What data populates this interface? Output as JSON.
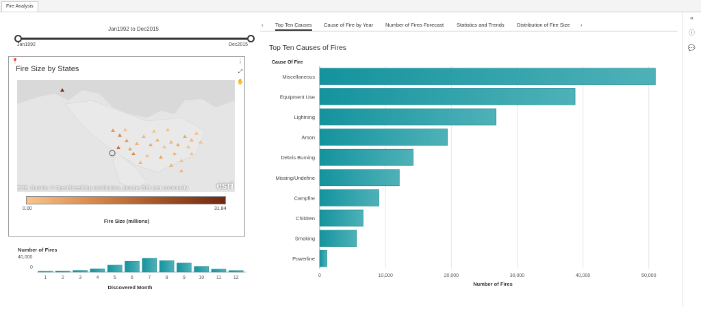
{
  "app_tab": "Fire Analysis",
  "slider": {
    "title": "Jan1992 to Dec2015",
    "min_label": "Jan1992",
    "max_label": "Dec2015"
  },
  "map": {
    "title": "Fire Size by States",
    "attribution": "ERE, Garmin, © OpenStreetMap contributors, and the GIS user community",
    "logo_text": "esri",
    "legend_min": "0.00",
    "legend_max": "31.84",
    "legend_title": "Fire Size (millions)",
    "colors": [
      "#f9c48c",
      "#d8894a",
      "#a45426",
      "#6f2810"
    ]
  },
  "tabs": [
    {
      "label": "Top Ten Causes",
      "active": true
    },
    {
      "label": "Cause of Fire by Year"
    },
    {
      "label": "Number of Fires Forecast"
    },
    {
      "label": "Statistics and Trends"
    },
    {
      "label": "Distribution of Fire Size"
    }
  ],
  "nav": {
    "prev": "‹",
    "next": "›"
  },
  "right_toolbar": {
    "collapse": "«",
    "info": "ⓘ",
    "comment": "💬"
  },
  "chart_data": [
    {
      "type": "bar",
      "orientation": "horizontal",
      "title": "Top Ten Causes of Fires",
      "ylabel": "Cause Of Fire",
      "xlabel": "Number of Fires",
      "categories": [
        "Miscellaneous",
        "Equipment Use",
        "Lightning",
        "Arson",
        "Debris Burning",
        "Missing/Undefine",
        "Campfire",
        "Children",
        "Smoking",
        "Powerline"
      ],
      "values": [
        51000,
        38800,
        26800,
        19400,
        14200,
        12100,
        9000,
        6600,
        5600,
        1100
      ],
      "xlim": [
        0,
        52000
      ],
      "xticks": [
        "0",
        "10,000",
        "20,000",
        "30,000",
        "40,000",
        "50,000"
      ],
      "xtick_values": [
        0,
        10000,
        20000,
        30000,
        40000,
        50000
      ],
      "grid": true,
      "color": "#1a9ba5"
    },
    {
      "type": "bar",
      "title": "Number of Fires",
      "xlabel": "Discovered Month",
      "categories": [
        "1",
        "2",
        "3",
        "4",
        "5",
        "6",
        "7",
        "8",
        "9",
        "10",
        "11",
        "12"
      ],
      "values": [
        3000,
        3500,
        5500,
        11000,
        23000,
        36000,
        46000,
        38000,
        30000,
        19000,
        10000,
        5000
      ],
      "yticks": [
        "40,000",
        "0"
      ],
      "ylim": [
        0,
        50000
      ],
      "color": "#1a9ba5"
    }
  ]
}
